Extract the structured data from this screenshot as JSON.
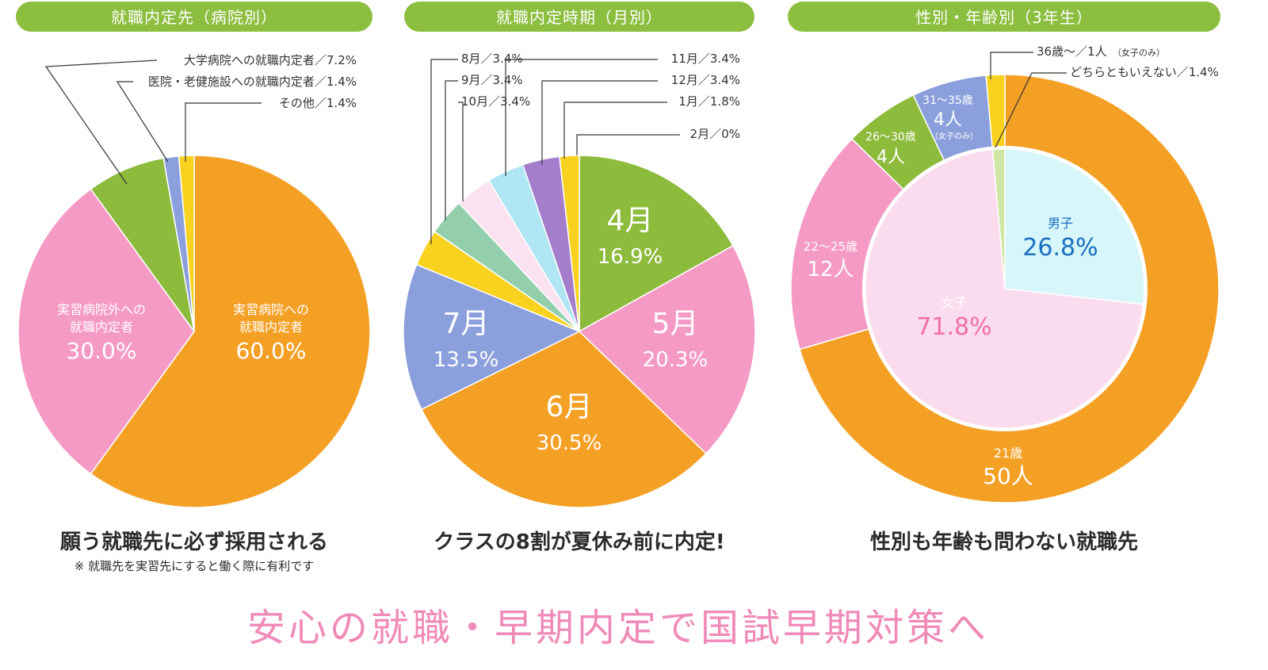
{
  "slogan": "安心の就職・早期内定で国試早期対策へ",
  "colors": {
    "header": "#8cbf3f",
    "orange": "#f4a025",
    "pink": "#f49ac4",
    "green": "#8dbb3c",
    "blue": "#8b9fdc",
    "yellow": "#f8d21e",
    "teal": "#93cfad",
    "lightpink": "#fbe2f0",
    "cyan": "#aee6f3",
    "purple": "#a47ecb",
    "lightgreen": "#cfe6a4",
    "male": "#d6f6fa",
    "female": "#fbdcee",
    "male_text": "#1a6fc1",
    "female_text": "#f06fa8"
  },
  "charts": [
    {
      "header": "就職内定先（病院別）",
      "caption": "願う就職先に必ず採用される",
      "note": "※ 就職先を実習先にすると働く際に有利です"
    },
    {
      "header": "就職内定時期（月別）",
      "caption": "クラスの8割が夏休み前に内定!"
    },
    {
      "header": "性別・年齢別（3年生）",
      "caption": "性別も年齢も問わない就職先"
    }
  ],
  "chart_data": [
    {
      "type": "pie",
      "title": "就職内定先（病院別）",
      "slices": [
        {
          "label": "実習病院への就職内定者",
          "value": 60.0,
          "display": "60.0%",
          "color": "orange",
          "inside_lines": [
            "実習病院への",
            "就職内定者"
          ]
        },
        {
          "label": "実習病院外への就職内定者",
          "value": 30.0,
          "display": "30.0%",
          "color": "pink",
          "inside_lines": [
            "実習病院外への",
            "就職内定者"
          ]
        },
        {
          "label": "大学病院への就職内定者",
          "value": 7.2,
          "display": "大学病院への就職内定者／7.2%",
          "color": "green"
        },
        {
          "label": "医院・老健施設への就職内定者",
          "value": 1.4,
          "display": "医院・老健施設への就職内定者／1.4%",
          "color": "blue"
        },
        {
          "label": "その他",
          "value": 1.4,
          "display": "その他／1.4%",
          "color": "yellow"
        }
      ]
    },
    {
      "type": "pie",
      "title": "就職内定時期（月別）",
      "slices": [
        {
          "label": "4月",
          "value": 16.9,
          "display": "16.9%",
          "color": "green"
        },
        {
          "label": "5月",
          "value": 20.3,
          "display": "20.3%",
          "color": "pink"
        },
        {
          "label": "6月",
          "value": 30.5,
          "display": "30.5%",
          "color": "orange"
        },
        {
          "label": "7月",
          "value": 13.5,
          "display": "13.5%",
          "color": "blue"
        },
        {
          "label": "8月",
          "value": 3.4,
          "display": "8月／3.4%",
          "color": "yellow"
        },
        {
          "label": "9月",
          "value": 3.4,
          "display": "9月／3.4%",
          "color": "teal"
        },
        {
          "label": "10月",
          "value": 3.4,
          "display": "10月／3.4%",
          "color": "lightpink"
        },
        {
          "label": "11月",
          "value": 3.4,
          "display": "11月／3.4%",
          "color": "cyan"
        },
        {
          "label": "12月",
          "value": 3.4,
          "display": "12月／3.4%",
          "color": "purple"
        },
        {
          "label": "1月",
          "value": 1.8,
          "display": "1月／1.8%",
          "color": "yellow"
        },
        {
          "label": "2月",
          "value": 0,
          "display": "2月／0%",
          "color": "yellow"
        }
      ]
    },
    {
      "type": "donut",
      "title": "性別・年齢別（3年生）",
      "outer": [
        {
          "label": "21歳",
          "value": 50,
          "display": "50人",
          "color": "orange"
        },
        {
          "label": "22〜25歳",
          "value": 12,
          "display": "12人",
          "color": "pink"
        },
        {
          "label": "26〜30歳",
          "value": 4,
          "display": "4人",
          "color": "green"
        },
        {
          "label": "31〜35歳",
          "value": 4,
          "display": "4人",
          "note": "（女子のみ）",
          "color": "blue"
        },
        {
          "label": "36歳〜",
          "value": 1,
          "display": "36歳〜／1人",
          "note": "（女子のみ）",
          "color": "yellow"
        }
      ],
      "inner": [
        {
          "label": "男子",
          "value": 26.8,
          "display": "26.8%",
          "color": "male"
        },
        {
          "label": "女子",
          "value": 71.8,
          "display": "71.8%",
          "color": "female"
        },
        {
          "label": "どちらともいえない",
          "value": 1.4,
          "display": "どちらともいえない／1.4%",
          "color": "lightgreen"
        }
      ]
    }
  ]
}
